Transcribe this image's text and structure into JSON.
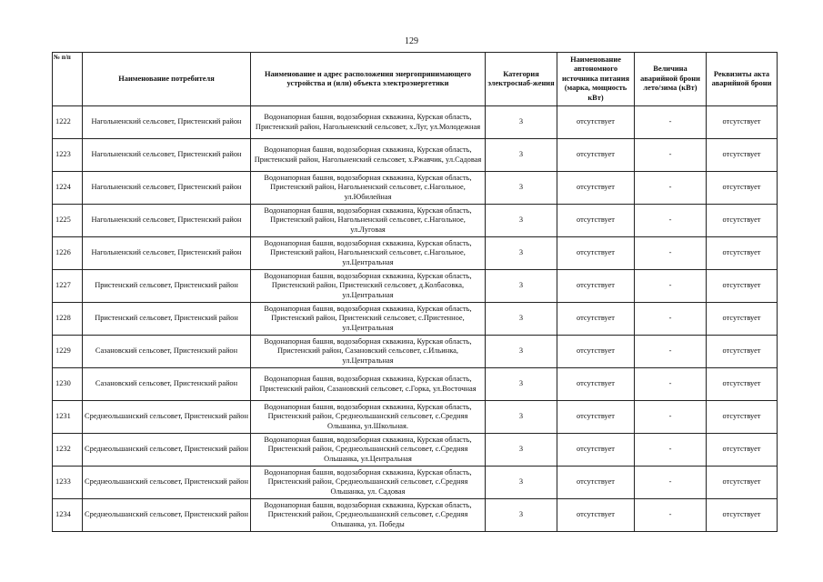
{
  "page_number": "129",
  "headers": [
    "№ п/п",
    "Наименование потребителя",
    "Наименование и адрес расположения энергопринимающего устройства и (или) объекта электроэнергетики",
    "Категория электроснаб-жения",
    "Наименование автономного источника питания (марка, мощность кВт)",
    "Величина аварийной брони лето/зима (кВт)",
    "Реквизиты акта аварийной брони"
  ],
  "rows": [
    [
      "1222",
      "Нагольненский сельсовет, Пристенский район",
      "Водонапорная башня, водозаборная скважина, Курская область, Пристенский район, Нагольненский сельсовет, х.Луг, ул.Молодежная",
      "3",
      "отсутствует",
      "-",
      "отсутствует"
    ],
    [
      "1223",
      "Нагольненский сельсовет, Пристенский район",
      "Водонапорная башня, водозаборная скважина, Курская область, Пристенский район, Нагольненский сельсовет, х.Ржавчик, ул.Садовая",
      "3",
      "отсутствует",
      "-",
      "отсутствует"
    ],
    [
      "1224",
      "Нагольненский сельсовет, Пристенский район",
      "Водонапорная башня, водозаборная скважина, Курская область, Пристенский район, Нагольненский сельсовет, с.Нагольное, ул.Юбилейная",
      "3",
      "отсутствует",
      "-",
      "отсутствует"
    ],
    [
      "1225",
      "Нагольненский сельсовет, Пристенский район",
      "Водонапорная башня, водозаборная скважина, Курская область, Пристенский район, Нагольненский сельсовет, с.Нагольное, ул.Луговая",
      "3",
      "отсутствует",
      "-",
      "отсутствует"
    ],
    [
      "1226",
      "Нагольненский сельсовет, Пристенский район",
      "Водонапорная башня, водозаборная скважина, Курская область, Пристенский район, Нагольненский сельсовет, с.Нагольное, ул.Центральная",
      "3",
      "отсутствует",
      "-",
      "отсутствует"
    ],
    [
      "1227",
      "Пристенский сельсовет, Пристенский район",
      "Водонапорная башня, водозаборная скважина, Курская область, Пристенский район, Пристенский сельсовет, д.Колбасовка,  ул.Центральная",
      "3",
      "отсутствует",
      "-",
      "отсутствует"
    ],
    [
      "1228",
      "Пристенский сельсовет, Пристенский район",
      "Водонапорная башня, водозаборная скважина, Курская область, Пристенский район, Пристенский сельсовет, с.Пристенное, ул.Центральная",
      "3",
      "отсутствует",
      "-",
      "отсутствует"
    ],
    [
      "1229",
      "Сазановский сельсовет, Пристенский район",
      "Водонапорная башня, водозаборная скважина, Курская область, Пристенский район, Сазановский сельсовет, с.Ильинка, ул.Центральная",
      "3",
      "отсутствует",
      "-",
      "отсутствует"
    ],
    [
      "1230",
      "Сазановский сельсовет, Пристенский район",
      "Водонапорная башня, водозаборная скважина, Курская область, Пристенский район, Сазановский сельсовет, с.Горка, ул.Восточная",
      "3",
      "отсутствует",
      "-",
      "отсутствует"
    ],
    [
      "1231",
      "Среднеольшанский сельсовет, Пристенский район",
      "Водонапорная башня, водозаборная скважина, Курская область, Пристенский район, Среднеольшанский сельсовет, с.Средняя Ольшанка, ул.Школьная.",
      "3",
      "отсутствует",
      "-",
      "отсутствует"
    ],
    [
      "1232",
      "Среднеольшанский сельсовет, Пристенский район",
      "Водонапорная башня, водозаборная скважина, Курская область, Пристенский район, Среднеольшанский сельсовет, с.Средняя Ольшанка, ул.Центральная",
      "3",
      "отсутствует",
      "-",
      "отсутствует"
    ],
    [
      "1233",
      "Среднеольшанский сельсовет, Пристенский район",
      "Водонапорная башня, водозаборная скважина, Курская область, Пристенский район, Среднеольшанский сельсовет, с.Средняя Ольшанка, ул. Садовая",
      "3",
      "отсутствует",
      "-",
      "отсутствует"
    ],
    [
      "1234",
      "Среднеольшанский сельсовет, Пристенский район",
      "Водонапорная башня, водозаборная скважина, Курская область, Пристенский район, Среднеольшанский сельсовет, с.Средняя Ольшанка, ул. Победы",
      "3",
      "отсутствует",
      "-",
      "отсутствует"
    ]
  ]
}
